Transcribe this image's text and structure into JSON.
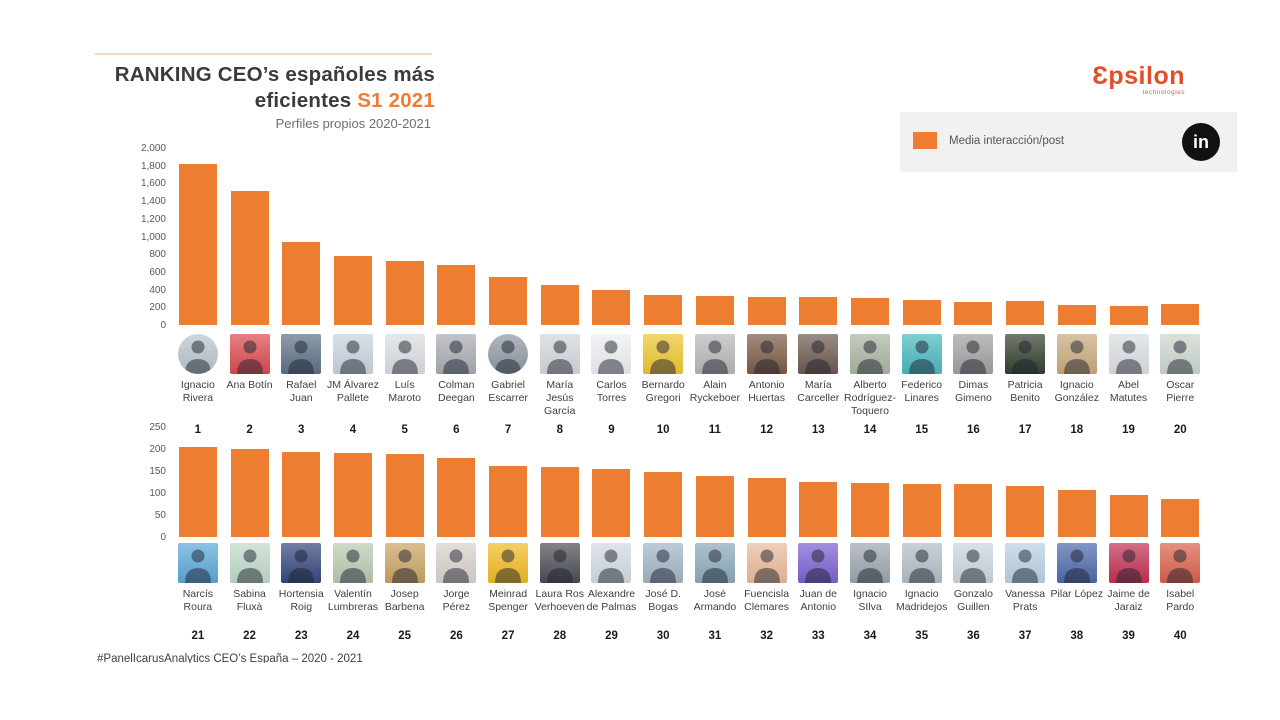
{
  "header": {
    "title_main": "RANKING CEO’s españoles más eficientes",
    "title_accent": "S1 2021",
    "subtitle": "Perfiles propios 2020-2021",
    "accent_color": "#ed7d31"
  },
  "brand": {
    "logo_text": "Ɛpsilon",
    "logo_sub": "technologies",
    "logo_color": "#e44d26"
  },
  "legend": {
    "label": "Media interacción/post",
    "swatch_color": "#ed7d31",
    "linkedin_icon": "in"
  },
  "footer": {
    "hashtag_line": "#PanelIcarusAnalytics CEO’s España – 2020 - 2021"
  },
  "chart_data": [
    {
      "type": "bar",
      "ylabel": "Media interacción/post",
      "ylim": [
        0,
        2000
      ],
      "yticks": [
        0,
        200,
        400,
        600,
        800,
        1000,
        1200,
        1400,
        1600,
        1800,
        2000
      ],
      "ytick_labels": [
        "0",
        "200",
        "400",
        "600",
        "800",
        "1,000",
        "1,200",
        "1,400",
        "1,600",
        "1,800",
        "2,000"
      ],
      "bar_color": "#ed7d31",
      "grid": false,
      "categories": [
        "Ignacio Rivera",
        "Ana Botín",
        "Rafael Juan",
        "JM Álvarez Pallete",
        "Luís Maroto",
        "Colman Deegan",
        "Gabriel Escarrer",
        "María Jesús García",
        "Carlos Torres",
        "Bernardo Gregori",
        "Alain Ryckeboer",
        "Antonio Huertas",
        "María Carceller",
        "Alberto Rodríguez-Toquero",
        "Federico Linares",
        "Dimas Gimeno",
        "Patricia Benito",
        "Ignacio González",
        "Abel Matutes",
        "Oscar Pierre"
      ],
      "ranks": [
        1,
        2,
        3,
        4,
        5,
        6,
        7,
        8,
        9,
        10,
        11,
        12,
        13,
        14,
        15,
        16,
        17,
        18,
        19,
        20
      ],
      "values": [
        1820,
        1510,
        940,
        780,
        720,
        680,
        545,
        455,
        400,
        335,
        330,
        320,
        315,
        300,
        285,
        260,
        275,
        225,
        215,
        235
      ],
      "photo_colors": [
        "#b9c3cb",
        "#d94a4e",
        "#5d7185",
        "#c7d3dc",
        "#d9dde1",
        "#a7acb2",
        "#8e97a2",
        "#d2d6da",
        "#eceeef",
        "#edc52f",
        "#b7b7b7",
        "#7b5b44",
        "#6e5a50",
        "#a9b5a1",
        "#49b8bf",
        "#a0a0a0",
        "#34402f",
        "#c9a97c",
        "#dadee2",
        "#ccd6cd"
      ],
      "photo_shapes": [
        "circle",
        "rect",
        "rect",
        "rect",
        "rect",
        "rect",
        "circle",
        "rect",
        "rect",
        "rect",
        "rect",
        "rect",
        "rect",
        "rect",
        "rect",
        "rect",
        "rect",
        "rect",
        "rect",
        "rect"
      ]
    },
    {
      "type": "bar",
      "ylabel": "Media interacción/post",
      "ylim": [
        0,
        250
      ],
      "yticks": [
        0,
        50,
        100,
        150,
        200,
        250
      ],
      "ytick_labels": [
        "0",
        "50",
        "100",
        "150",
        "200",
        "250"
      ],
      "bar_color": "#ed7d31",
      "grid": false,
      "categories": [
        "Narcís Roura",
        "Sabina Fluxà",
        "Hortensia Roig",
        "Valentín Lumbreras",
        "Josep Barbena",
        "Jorge Pérez",
        "Meinrad Spenger",
        "Laura Ros Verhoeven",
        "Alexandre de Palmas",
        "José D. Bogas",
        "José Armando",
        "Fuencisla Clemares",
        "Juan de Antonio",
        "Ignacio SIlva",
        "Ignacio Madridejos",
        "Gonzalo Guillen",
        "Vanessa Prats",
        "Pilar López",
        "Jaime de Jaraiz",
        "Isabel Pardo"
      ],
      "ranks": [
        21,
        22,
        23,
        24,
        25,
        26,
        27,
        28,
        29,
        30,
        31,
        32,
        33,
        34,
        35,
        36,
        37,
        38,
        39,
        40
      ],
      "values": [
        205,
        200,
        193,
        192,
        188,
        180,
        161,
        158,
        155,
        148,
        138,
        133,
        126,
        123,
        121,
        120,
        115,
        107,
        96,
        86
      ],
      "photo_colors": [
        "#5ba8d9",
        "#bed9c9",
        "#34477c",
        "#b9c9b1",
        "#c9a263",
        "#d9d1c9",
        "#f0ba22",
        "#4c4c54",
        "#d1d9e1",
        "#a0b5c5",
        "#8aa9b9",
        "#e9b999",
        "#7b60d1",
        "#9ba5ad",
        "#b1bdc5",
        "#c9d5dd",
        "#b9d1e1",
        "#4c69a9",
        "#c13151",
        "#d96149"
      ],
      "photo_shapes": [
        "rect",
        "rect",
        "rect",
        "rect",
        "rect",
        "rect",
        "rect",
        "rect",
        "rect",
        "rect",
        "rect",
        "rect",
        "rect",
        "rect",
        "rect",
        "rect",
        "rect",
        "rect",
        "rect",
        "rect"
      ]
    }
  ]
}
